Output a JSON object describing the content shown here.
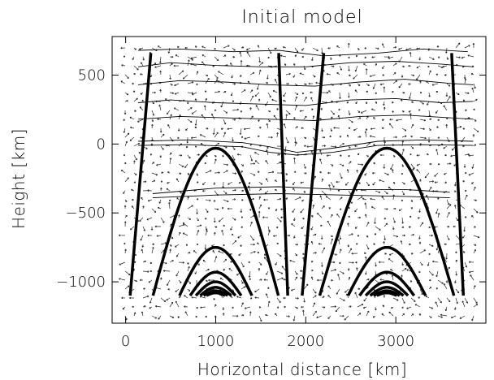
{
  "chart_data": {
    "type": "line",
    "title": "Initial model",
    "xlabel": "Horizontal distance [km]",
    "ylabel": "Height [km]",
    "xlim": [
      -150,
      4000
    ],
    "ylim": [
      -1300,
      780
    ],
    "xticks": [
      0,
      1000,
      2000,
      3000
    ],
    "xtick_labels": [
      "0",
      "1000",
      "2000",
      "3000"
    ],
    "yticks": [
      500,
      0,
      -500,
      -1000
    ],
    "ytick_labels": [
      "500",
      "0",
      "−500",
      "−1000"
    ],
    "grid": false,
    "colors": {
      "line": "#000000",
      "background": "#ffffff"
    },
    "field_lines": {
      "arch_base_y": -1100,
      "arches": [
        {
          "center": 1000,
          "half_width": 700,
          "peaks": [
            -30,
            -750,
            -930,
            -1000,
            -1040,
            -1065,
            -1080
          ]
        },
        {
          "center": 2900,
          "half_width": 750,
          "peaks": [
            -30,
            -750,
            -930,
            -1000,
            -1040,
            -1065,
            -1080
          ]
        }
      ],
      "open_lines": [
        [
          [
            50,
            -1100
          ],
          [
            280,
            660
          ]
        ],
        [
          [
            1800,
            -1100
          ],
          [
            1700,
            660
          ]
        ],
        [
          [
            1960,
            -1100
          ],
          [
            2200,
            660
          ]
        ],
        [
          [
            3750,
            -1100
          ],
          [
            3620,
            660
          ]
        ]
      ]
    },
    "contours": [
      [
        [
          140,
          680
        ],
        [
          600,
          690
        ],
        [
          1200,
          670
        ],
        [
          1700,
          680
        ],
        [
          2200,
          640
        ],
        [
          2800,
          660
        ],
        [
          3300,
          690
        ],
        [
          3800,
          670
        ]
      ],
      [
        [
          140,
          560
        ],
        [
          500,
          590
        ],
        [
          1000,
          570
        ],
        [
          1500,
          560
        ],
        [
          2000,
          560
        ],
        [
          2500,
          590
        ],
        [
          3000,
          600
        ],
        [
          3500,
          580
        ],
        [
          3860,
          560
        ]
      ],
      [
        [
          140,
          430
        ],
        [
          600,
          460
        ],
        [
          1100,
          450
        ],
        [
          1600,
          430
        ],
        [
          2100,
          420
        ],
        [
          2600,
          450
        ],
        [
          3100,
          470
        ],
        [
          3600,
          440
        ],
        [
          3860,
          430
        ]
      ],
      [
        [
          140,
          300
        ],
        [
          500,
          320
        ],
        [
          1000,
          300
        ],
        [
          1500,
          290
        ],
        [
          2000,
          280
        ],
        [
          2500,
          320
        ],
        [
          3000,
          330
        ],
        [
          3500,
          300
        ],
        [
          3860,
          310
        ]
      ],
      [
        [
          140,
          180
        ],
        [
          600,
          200
        ],
        [
          1100,
          190
        ],
        [
          1600,
          180
        ],
        [
          2100,
          170
        ],
        [
          2600,
          200
        ],
        [
          3100,
          210
        ],
        [
          3600,
          190
        ],
        [
          3860,
          180
        ]
      ],
      [
        [
          140,
          20
        ],
        [
          700,
          30
        ],
        [
          1300,
          10
        ],
        [
          1600,
          -20
        ],
        [
          1900,
          -60
        ],
        [
          2300,
          -30
        ],
        [
          2800,
          20
        ],
        [
          3300,
          30
        ],
        [
          3860,
          20
        ]
      ],
      [
        [
          140,
          -10
        ],
        [
          700,
          -5
        ],
        [
          1300,
          -20
        ],
        [
          1600,
          -60
        ],
        [
          1900,
          -80
        ],
        [
          2300,
          -60
        ],
        [
          2800,
          -10
        ],
        [
          3300,
          -5
        ],
        [
          3860,
          -10
        ]
      ],
      [
        [
          300,
          -360
        ],
        [
          1000,
          -320
        ],
        [
          1700,
          -310
        ],
        [
          2400,
          -330
        ],
        [
          3100,
          -330
        ],
        [
          3600,
          -350
        ]
      ],
      [
        [
          300,
          -390
        ],
        [
          1000,
          -370
        ],
        [
          1700,
          -360
        ],
        [
          2400,
          -370
        ],
        [
          3100,
          -380
        ],
        [
          3600,
          -390
        ]
      ]
    ]
  }
}
